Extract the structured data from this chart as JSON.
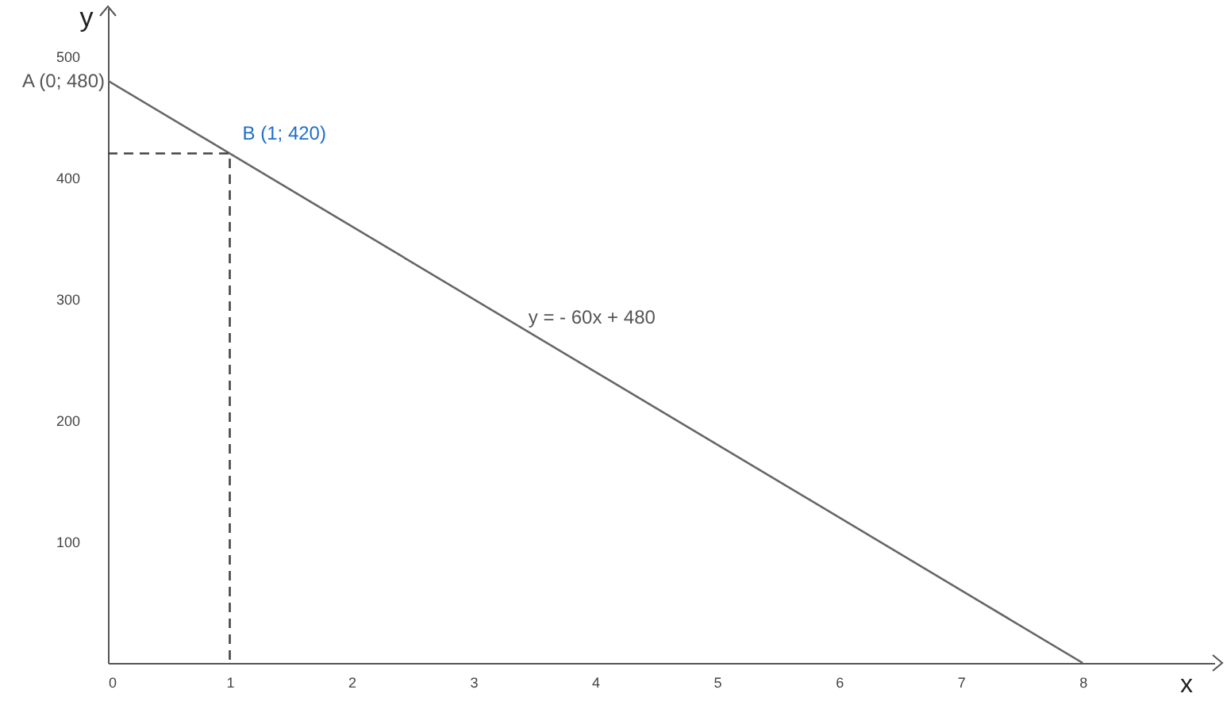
{
  "chart_data": {
    "type": "line",
    "xlabel": "x",
    "ylabel": "y",
    "xlim": [
      0,
      9.08
    ],
    "ylim": [
      0,
      540
    ],
    "xticks": [
      0,
      1,
      2,
      3,
      4,
      5,
      6,
      7,
      8
    ],
    "yticks": [
      100,
      200,
      300,
      400,
      500
    ],
    "series": [
      {
        "color": "#666666",
        "x": [
          0,
          8
        ],
        "values": [
          480,
          0
        ],
        "line_style": "solid"
      },
      {
        "color": "#444444",
        "x": [
          0,
          1,
          1
        ],
        "values": [
          420,
          420,
          0
        ],
        "line_style": "dashed"
      }
    ],
    "annotations": [
      {
        "text": "A (0; 480)",
        "x": 0,
        "y": 480
      },
      {
        "text": "B (1; 420)",
        "x": 1,
        "y": 420
      },
      "y = - 60x + 480"
    ],
    "marker": "none"
  }
}
